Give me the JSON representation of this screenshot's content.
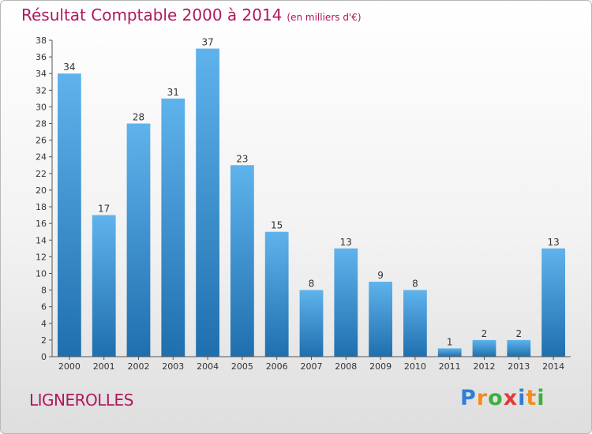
{
  "header": {
    "title": "Résultat Comptable 2000 à 2014",
    "unit": "(en milliers d'€)"
  },
  "commune": "LIGNEROLLES",
  "logo": {
    "letters": [
      "P",
      "r",
      "o",
      "x",
      "i",
      "t",
      "i"
    ],
    "colors": [
      "#2f7fd6",
      "#f28c1e",
      "#3fae3f",
      "#e53935",
      "#2f7fd6",
      "#f28c1e",
      "#3fae3f"
    ]
  },
  "colors": {
    "title": "#b0175e",
    "bar_top": "#5fb3ec",
    "bar_bottom": "#1f6fae"
  },
  "chart_data": {
    "type": "bar",
    "title": "Résultat Comptable 2000 à 2014",
    "subtitle": "(en milliers d'€)",
    "categories": [
      "2000",
      "2001",
      "2002",
      "2003",
      "2004",
      "2005",
      "2006",
      "2007",
      "2008",
      "2009",
      "2010",
      "2011",
      "2012",
      "2013",
      "2014"
    ],
    "values": [
      34,
      17,
      28,
      31,
      37,
      23,
      15,
      8,
      13,
      9,
      8,
      1,
      2,
      2,
      13
    ],
    "xlabel": "",
    "ylabel": "",
    "ylim": [
      0,
      38
    ],
    "yticks": [
      0,
      2,
      4,
      6,
      8,
      10,
      12,
      14,
      16,
      18,
      20,
      22,
      24,
      26,
      28,
      30,
      32,
      34,
      36,
      38
    ],
    "grid": false,
    "legend": "none"
  }
}
